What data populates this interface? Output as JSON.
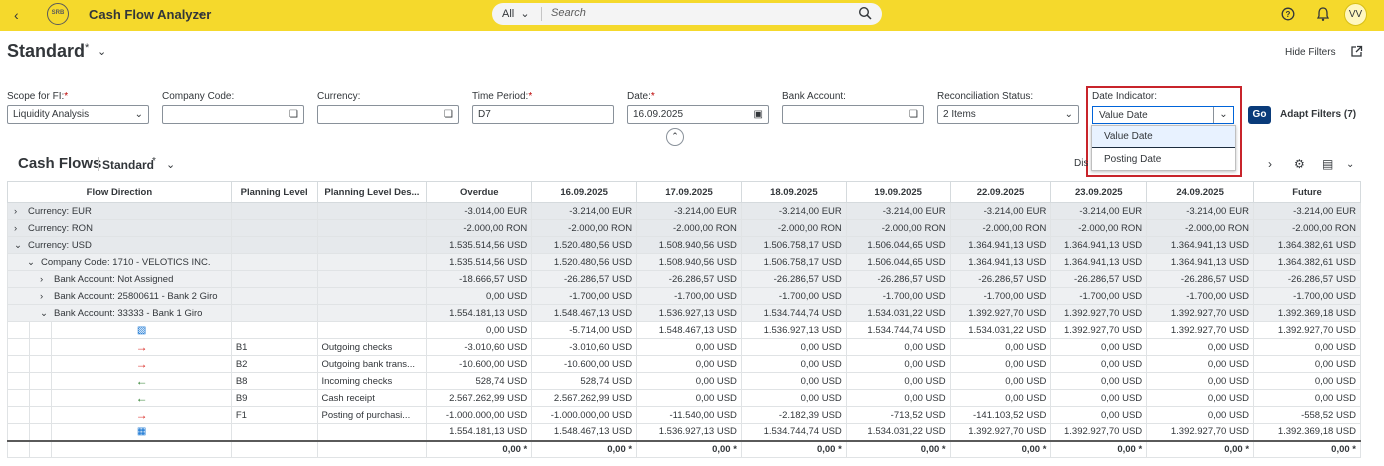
{
  "shell": {
    "logo_text": "SRB",
    "app_title": "Cash Flow Analyzer",
    "search_scope": "All",
    "search_placeholder": "Search",
    "avatar_initials": "VV"
  },
  "variant": {
    "name": "Standard",
    "modified_marker": "*"
  },
  "header_actions": {
    "hide_filters": "Hide Filters"
  },
  "filters": [
    {
      "label": "Scope for FI:",
      "required": true,
      "value": "Liquidity Analysis",
      "type": "select"
    },
    {
      "label": "Company Code:",
      "required": false,
      "value": "",
      "type": "valuehelp"
    },
    {
      "label": "Currency:",
      "required": false,
      "value": "",
      "type": "valuehelp"
    },
    {
      "label": "Time Period:",
      "required": true,
      "value": "D7",
      "type": "text"
    },
    {
      "label": "Date:",
      "required": true,
      "value": "16.09.2025",
      "type": "date"
    },
    {
      "label": "Bank Account:",
      "required": false,
      "value": "",
      "type": "valuehelp"
    },
    {
      "label": "Reconciliation Status:",
      "required": false,
      "value": "2 Items",
      "type": "select"
    }
  ],
  "date_indicator": {
    "label": "Date Indicator:",
    "value": "Value Date",
    "options": [
      "Value Date",
      "Posting Date"
    ]
  },
  "go_label": "Go",
  "adapt_filters_label": "Adapt Filters (7)",
  "table": {
    "title": "Cash Flows",
    "variant": "Standard",
    "modified_marker": "*",
    "display_text_partial": "Disp",
    "columns": [
      "Flow Direction",
      "Planning Level",
      "Planning Level Des...",
      "Overdue",
      "16.09.2025",
      "17.09.2025",
      "18.09.2025",
      "19.09.2025",
      "22.09.2025",
      "23.09.2025",
      "24.09.2025",
      "Future"
    ],
    "rows": [
      {
        "kind": "grp",
        "indent": 0,
        "toggle": ">",
        "label": "Currency: EUR",
        "pl": "",
        "pld": "",
        "vals": [
          "-3.014,00 EUR",
          "-3.214,00 EUR",
          "-3.214,00 EUR",
          "-3.214,00 EUR",
          "-3.214,00 EUR",
          "-3.214,00 EUR",
          "-3.214,00 EUR",
          "-3.214,00 EUR",
          "-3.214,00 EUR"
        ]
      },
      {
        "kind": "grp",
        "indent": 0,
        "toggle": ">",
        "label": "Currency: RON",
        "pl": "",
        "pld": "",
        "vals": [
          "-2.000,00 RON",
          "-2.000,00 RON",
          "-2.000,00 RON",
          "-2.000,00 RON",
          "-2.000,00 RON",
          "-2.000,00 RON",
          "-2.000,00 RON",
          "-2.000,00 RON",
          "-2.000,00 RON"
        ]
      },
      {
        "kind": "grp",
        "indent": 0,
        "toggle": "v",
        "label": "Currency: USD",
        "pl": "",
        "pld": "",
        "vals": [
          "1.535.514,56 USD",
          "1.520.480,56 USD",
          "1.508.940,56 USD",
          "1.506.758,17 USD",
          "1.506.044,65 USD",
          "1.364.941,13 USD",
          "1.364.941,13 USD",
          "1.364.941,13 USD",
          "1.364.382,61 USD"
        ]
      },
      {
        "kind": "grp2",
        "indent": 1,
        "toggle": "v",
        "label": "Company Code: 1710 - VELOTICS INC.",
        "pl": "",
        "pld": "",
        "vals": [
          "1.535.514,56 USD",
          "1.520.480,56 USD",
          "1.508.940,56 USD",
          "1.506.758,17 USD",
          "1.506.044,65 USD",
          "1.364.941,13 USD",
          "1.364.941,13 USD",
          "1.364.941,13 USD",
          "1.364.382,61 USD"
        ]
      },
      {
        "kind": "grp2",
        "indent": 2,
        "toggle": ">",
        "label": "Bank Account: Not Assigned",
        "pl": "",
        "pld": "",
        "vals": [
          "-18.666,57 USD",
          "-26.286,57 USD",
          "-26.286,57 USD",
          "-26.286,57 USD",
          "-26.286,57 USD",
          "-26.286,57 USD",
          "-26.286,57 USD",
          "-26.286,57 USD",
          "-26.286,57 USD"
        ]
      },
      {
        "kind": "grp2",
        "indent": 2,
        "toggle": ">",
        "label": "Bank Account: 25800611 - Bank 2 Giro",
        "pl": "",
        "pld": "",
        "vals": [
          "0,00 USD",
          "-1.700,00 USD",
          "-1.700,00 USD",
          "-1.700,00 USD",
          "-1.700,00 USD",
          "-1.700,00 USD",
          "-1.700,00 USD",
          "-1.700,00 USD",
          "-1.700,00 USD"
        ]
      },
      {
        "kind": "grp2",
        "indent": 2,
        "toggle": "v",
        "label": "Bank Account: 33333 - Bank 1 Giro",
        "pl": "",
        "pld": "",
        "vals": [
          "1.554.181,13 USD",
          "1.548.467,13 USD",
          "1.536.927,13 USD",
          "1.534.744,74 USD",
          "1.534.031,22 USD",
          "1.392.927,70 USD",
          "1.392.927,70 USD",
          "1.392.927,70 USD",
          "1.392.369,18 USD"
        ]
      },
      {
        "kind": "leaf",
        "icon": "opening-balance-icon",
        "pl": "",
        "pld": "",
        "vals": [
          "0,00 USD",
          "-5.714,00 USD",
          "1.548.467,13 USD",
          "1.536.927,13 USD",
          "1.534.744,74 USD",
          "1.534.031,22 USD",
          "1.392.927,70 USD",
          "1.392.927,70 USD",
          "1.392.927,70 USD"
        ]
      },
      {
        "kind": "leaf",
        "icon": "outflow-arrow-icon",
        "pl": "B1",
        "pld": "Outgoing checks",
        "vals": [
          "-3.010,60 USD",
          "-3.010,60 USD",
          "0,00 USD",
          "0,00 USD",
          "0,00 USD",
          "0,00 USD",
          "0,00 USD",
          "0,00 USD",
          "0,00 USD"
        ]
      },
      {
        "kind": "leaf",
        "icon": "outflow-arrow-icon",
        "pl": "B2",
        "pld": "Outgoing bank trans...",
        "vals": [
          "-10.600,00 USD",
          "-10.600,00 USD",
          "0,00 USD",
          "0,00 USD",
          "0,00 USD",
          "0,00 USD",
          "0,00 USD",
          "0,00 USD",
          "0,00 USD"
        ]
      },
      {
        "kind": "leaf",
        "icon": "inflow-arrow-icon",
        "pl": "B8",
        "pld": "Incoming checks",
        "vals": [
          "528,74 USD",
          "528,74 USD",
          "0,00 USD",
          "0,00 USD",
          "0,00 USD",
          "0,00 USD",
          "0,00 USD",
          "0,00 USD",
          "0,00 USD"
        ]
      },
      {
        "kind": "leaf",
        "icon": "inflow-arrow-icon",
        "pl": "B9",
        "pld": "Cash receipt",
        "vals": [
          "2.567.262,99 USD",
          "2.567.262,99 USD",
          "0,00 USD",
          "0,00 USD",
          "0,00 USD",
          "0,00 USD",
          "0,00 USD",
          "0,00 USD",
          "0,00 USD"
        ]
      },
      {
        "kind": "leaf",
        "icon": "outflow-arrow-icon",
        "pl": "F1",
        "pld": "Posting of purchasi...",
        "vals": [
          "-1.000.000,00 USD",
          "-1.000.000,00 USD",
          "-11.540,00 USD",
          "-2.182,39 USD",
          "-713,52 USD",
          "-141.103,52 USD",
          "0,00 USD",
          "0,00 USD",
          "-558,52 USD"
        ]
      },
      {
        "kind": "leaf",
        "icon": "closing-balance-icon",
        "pl": "",
        "pld": "",
        "vals": [
          "1.554.181,13 USD",
          "1.548.467,13 USD",
          "1.536.927,13 USD",
          "1.534.744,74 USD",
          "1.534.031,22 USD",
          "1.392.927,70 USD",
          "1.392.927,70 USD",
          "1.392.927,70 USD",
          "1.392.369,18 USD"
        ]
      },
      {
        "kind": "tot",
        "pl": "",
        "pld": "",
        "vals": [
          "0,00 *",
          "0,00 *",
          "0,00 *",
          "0,00 *",
          "0,00 *",
          "0,00 *",
          "0,00 *",
          "0,00 *",
          "0,00 *"
        ]
      }
    ]
  }
}
